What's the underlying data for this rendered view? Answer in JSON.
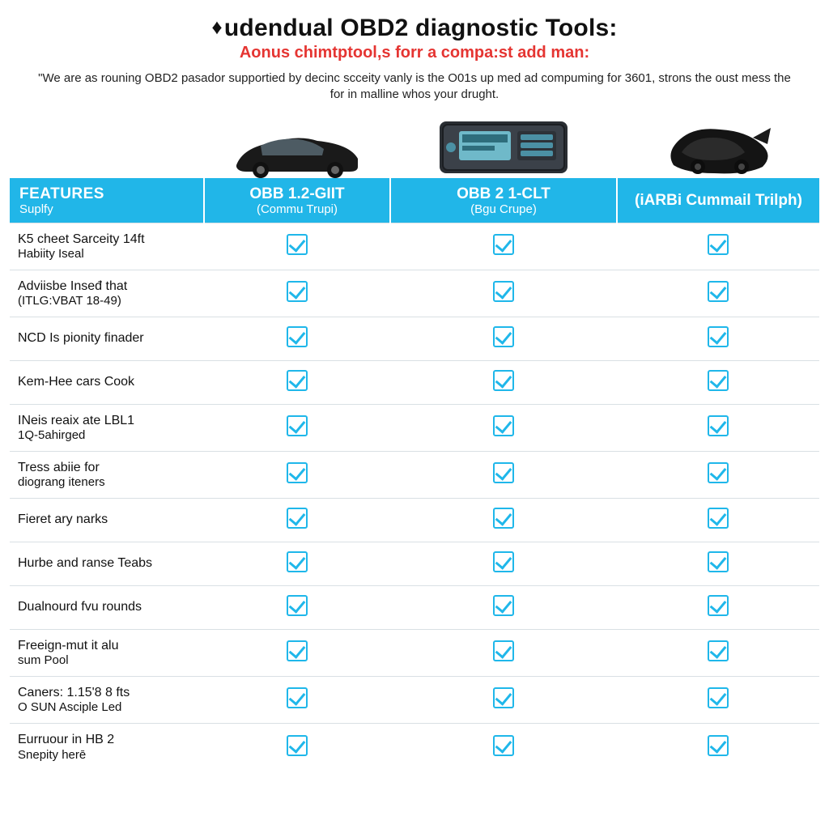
{
  "header": {
    "title_prefix_glyph": "♦",
    "title": "udendual OBD2 diagnostic Tools:",
    "subtitle": "Aonus chimtptool,s forr a compa:st add man:",
    "blurb": "\"We are as rouning OBD2 pasador supportied by decinc scceity vanly is the O01s up med ad compuming for 3601, strons the oust mess the for in malline whos your drught."
  },
  "colors": {
    "header_bg": "#21b6e8",
    "check_color": "#1fb7ea",
    "subtitle_color": "#e53532",
    "row_border": "#d9e0e4"
  },
  "columns": {
    "features": {
      "label": "FEATURES",
      "sub": "Suplfy"
    },
    "p1": {
      "label": "OBB 1.2-GIIT",
      "sub": "(Commu Trupi)"
    },
    "p2": {
      "label": "OBB 2 1-CLT",
      "sub": "(Bgu Crupe)"
    },
    "p3": {
      "label": "(iARBi Cummail Trilph)",
      "sub": ""
    }
  },
  "rows": [
    {
      "l1": "K5 cheet Sarceity 14ft",
      "l2": "Habiity Iseal",
      "v": [
        true,
        true,
        true
      ]
    },
    {
      "l1": "Adviisbe Inseđ that",
      "l2": "(ITLG:VBAT 18-49)",
      "v": [
        true,
        true,
        true
      ]
    },
    {
      "l1": "NCD Is pionity finader",
      "l2": "",
      "v": [
        true,
        true,
        true
      ]
    },
    {
      "l1": "Kem-Hee cars Cook",
      "l2": "",
      "v": [
        true,
        true,
        true
      ]
    },
    {
      "l1": "INeis reaix ate LBL1",
      "l2": "1Q-5ahirged",
      "v": [
        true,
        true,
        true
      ]
    },
    {
      "l1": "Tress abiie for",
      "l2": "diograng iteners",
      "v": [
        true,
        true,
        true
      ]
    },
    {
      "l1": "Fieret ary narks",
      "l2": "",
      "v": [
        true,
        true,
        true
      ]
    },
    {
      "l1": "Hurbe and ranse Teabs",
      "l2": "",
      "v": [
        true,
        true,
        true
      ]
    },
    {
      "l1": "Dualnourd fvu rounds",
      "l2": "",
      "v": [
        true,
        true,
        true
      ]
    },
    {
      "l1": "Freeign-mut it alu",
      "l2": "sum Pool",
      "v": [
        true,
        true,
        true
      ]
    },
    {
      "l1": "Caners: 1.15'8 8 fts",
      "l2": "O SUN Asciple Led",
      "v": [
        true,
        true,
        true
      ]
    },
    {
      "l1": "Eurruour in HB 2",
      "l2": "Snepity herē",
      "v": [
        true,
        true,
        true
      ]
    }
  ]
}
